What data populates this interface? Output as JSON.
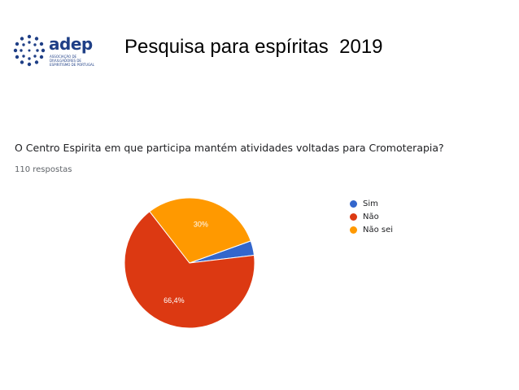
{
  "header": {
    "logo": {
      "text": "adep",
      "tagline": "Associação de Divulgadores de Espiritismo de Portugal"
    },
    "title": "Pesquisa para espíritas  2019"
  },
  "chart_data": {
    "type": "pie",
    "title": "O Centro Espirita em que participa mantém atividades voltadas para Cromoterapia?",
    "subtitle": "110 respostas",
    "categories": [
      "Sim",
      "Não",
      "Não sei"
    ],
    "values": [
      3.6,
      66.4,
      30
    ],
    "data_labels": [
      "",
      "66,4%",
      "30%"
    ],
    "colors": [
      "#3366cc",
      "#dc3912",
      "#ff9900"
    ],
    "legend_position": "right"
  }
}
